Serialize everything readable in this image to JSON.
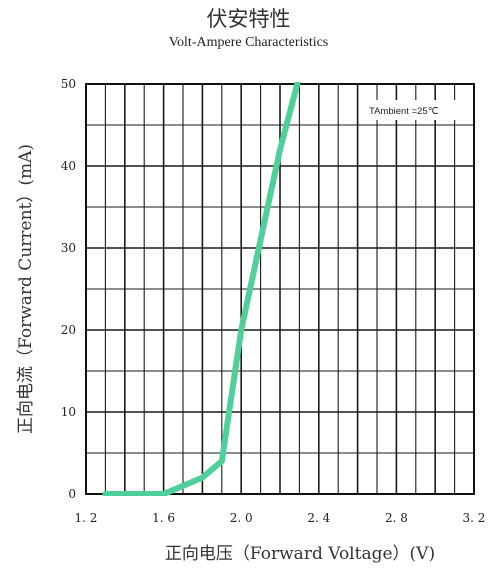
{
  "chart_data": {
    "type": "line",
    "title": "伏安特性",
    "subtitle": "Volt-Ampere Characteristics",
    "xlabel": "正向电压（Forward  Voltage）(V)",
    "ylabel": "正向电流（Forward  Current）(mA)",
    "annotation": "TAmbient =25℃",
    "xlim": [
      1.2,
      3.2
    ],
    "ylim": [
      0,
      50
    ],
    "x_ticks": [
      1.2,
      1.6,
      2.0,
      2.4,
      2.8,
      3.2
    ],
    "x_tick_labels": [
      "1. 2",
      "1. 6",
      "2. 0",
      "2. 4",
      "2. 8",
      "3. 2"
    ],
    "y_ticks": [
      0,
      10,
      20,
      30,
      40,
      50
    ],
    "y_tick_labels": [
      "0",
      "10",
      "20",
      "30",
      "40",
      "50"
    ],
    "grid": true,
    "series_color": "#4fcf9a",
    "series": [
      {
        "x": [
          1.3,
          1.6,
          1.8,
          1.9,
          2.0,
          2.1,
          2.2,
          2.3
        ],
        "y": [
          0,
          0,
          2,
          4,
          20,
          31,
          42,
          51
        ]
      }
    ]
  }
}
